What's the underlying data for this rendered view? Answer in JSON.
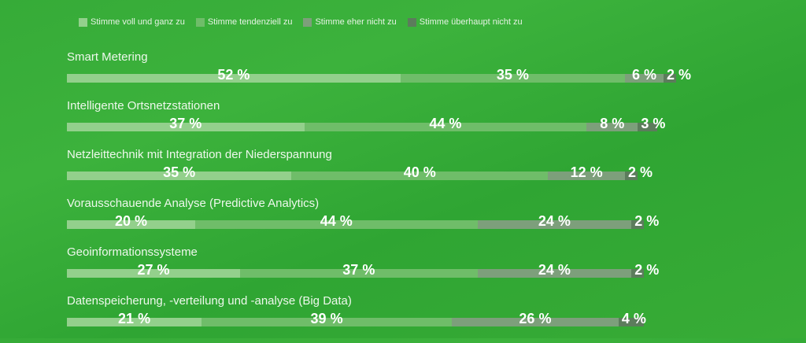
{
  "chart_data": {
    "type": "bar",
    "orientation": "horizontal-stacked",
    "legend_position": "top",
    "grid": false,
    "xlim": [
      0,
      100
    ],
    "series": [
      {
        "name": "Stimme voll und ganz zu",
        "color": "#93d08c"
      },
      {
        "name": "Stimme tendenziell zu",
        "color": "#6fbd69"
      },
      {
        "name": "Stimme eher nicht zu",
        "color": "#7d9f7b"
      },
      {
        "name": "Stimme überhaupt nicht zu",
        "color": "#5c7c5c"
      }
    ],
    "categories": [
      {
        "label": "Smart Metering",
        "values": [
          52,
          35,
          6,
          2
        ],
        "value_labels": [
          "52 %",
          "35 %",
          "6 %",
          "2 %"
        ]
      },
      {
        "label": "Intelligente Ortsnetzstationen",
        "values": [
          37,
          44,
          8,
          3
        ],
        "value_labels": [
          "37 %",
          "44 %",
          "8 %",
          "3 %"
        ]
      },
      {
        "label": "Netzleittechnik mit Integration der Niederspannung",
        "values": [
          35,
          40,
          12,
          2
        ],
        "value_labels": [
          "35 %",
          "40 %",
          "12 %",
          "2 %"
        ]
      },
      {
        "label": "Vorausschauende Analyse (Predictive Analytics)",
        "values": [
          20,
          44,
          24,
          2
        ],
        "value_labels": [
          "20 %",
          "44 %",
          "24 %",
          "2 %"
        ]
      },
      {
        "label": "Geoinformationssysteme",
        "values": [
          27,
          37,
          24,
          2
        ],
        "value_labels": [
          "27 %",
          "37 %",
          "24 %",
          "2 %"
        ]
      },
      {
        "label": "Datenspeicherung, -verteilung und -analyse (Big Data)",
        "values": [
          21,
          39,
          26,
          4
        ],
        "value_labels": [
          "21 %",
          "39 %",
          "26 %",
          "4 %"
        ]
      }
    ]
  }
}
